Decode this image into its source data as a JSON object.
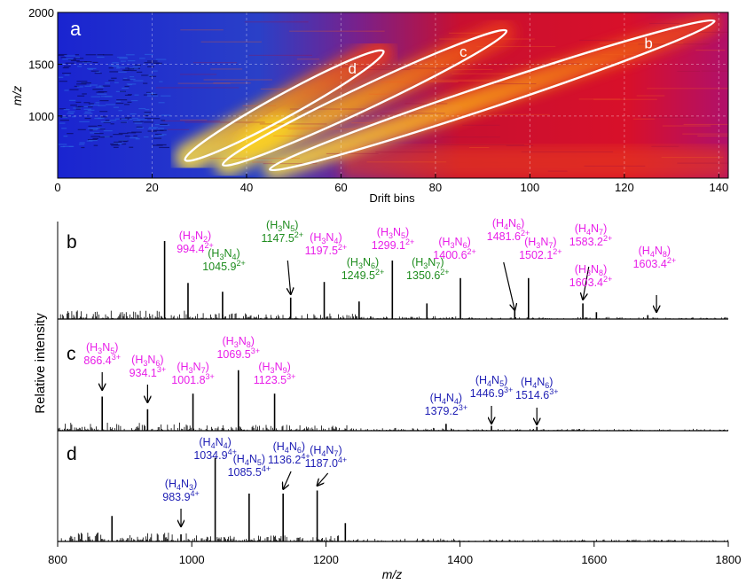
{
  "colors": {
    "heatmap_low": "#1a2ad8",
    "heatmap_mid": "#d8102a",
    "heatmap_high": "#ffd41a",
    "magenta": "#e81ee8",
    "green": "#1e8c1e",
    "blue": "#1e1eb4",
    "trace": "#000000"
  },
  "chart_data": [
    {
      "type": "heatmap",
      "panel_label": "a",
      "xlabel": "Drift bins",
      "ylabel": "m/z",
      "xlim": [
        0,
        142
      ],
      "ylim": [
        400,
        2000
      ],
      "x_ticks": [
        "0",
        "20",
        "40",
        "60",
        "80",
        "100",
        "120",
        "140"
      ],
      "y_ticks": [
        "1000",
        "1500",
        "2000"
      ],
      "grid": true,
      "trend_bands": [
        {
          "name": "d",
          "start": [
            28,
            600
          ],
          "end": [
            68,
            1600
          ]
        },
        {
          "name": "c",
          "start": [
            36,
            550
          ],
          "end": [
            94,
            1800
          ]
        },
        {
          "name": "b",
          "start": [
            46,
            500
          ],
          "end": [
            138,
            1900
          ]
        }
      ]
    },
    {
      "type": "line",
      "stacked_spectra": true,
      "xlabel": "m/z",
      "ylabel": "Relative intensity",
      "xlim": [
        800,
        1800
      ],
      "x_ticks": [
        "800",
        "1000",
        "1200",
        "1400",
        "1600",
        "1800"
      ],
      "panels": [
        {
          "label": "b",
          "peaks": [
            {
              "x": 959.5,
              "y": 0.8
            },
            {
              "x": 994.4,
              "y": 0.37
            },
            {
              "x": 1045.9,
              "y": 0.28
            },
            {
              "x": 1147.5,
              "y": 0.22
            },
            {
              "x": 1197.5,
              "y": 0.38
            },
            {
              "x": 1249.5,
              "y": 0.18
            },
            {
              "x": 1299.1,
              "y": 0.6
            },
            {
              "x": 1350.6,
              "y": 0.16
            },
            {
              "x": 1400.6,
              "y": 0.42
            },
            {
              "x": 1481.6,
              "y": 0.1
            },
            {
              "x": 1502.1,
              "y": 0.42
            },
            {
              "x": 1583.2,
              "y": 0.16
            },
            {
              "x": 1603.4,
              "y": 0.07
            },
            {
              "x": 1680.0,
              "y": 0.04
            }
          ],
          "annotations": [
            {
              "name": "(H3N2)",
              "value": "994.4",
              "charge": "2+",
              "color": "magenta"
            },
            {
              "name": "(H3N4)",
              "value": "1045.9",
              "charge": "2+",
              "color": "green"
            },
            {
              "name": "(H3N5)",
              "value": "1147.5",
              "charge": "2+",
              "color": "green"
            },
            {
              "name": "(H3N4)",
              "value": "1197.5",
              "charge": "2+",
              "color": "magenta"
            },
            {
              "name": "(H3N6)",
              "value": "1249.5",
              "charge": "2+",
              "color": "green"
            },
            {
              "name": "(H3N5)",
              "value": "1299.1",
              "charge": "2+",
              "color": "magenta"
            },
            {
              "name": "(H3N7)",
              "value": "1350.6",
              "charge": "2+",
              "color": "green"
            },
            {
              "name": "(H3N6)",
              "value": "1400.6",
              "charge": "2+",
              "color": "magenta"
            },
            {
              "name": "(H4N6)",
              "value": "1481.6",
              "charge": "2+",
              "color": "magenta"
            },
            {
              "name": "(H3N7)",
              "value": "1502.1",
              "charge": "2+",
              "color": "magenta"
            },
            {
              "name": "(H4N7)",
              "value": "1583.2",
              "charge": "2+",
              "color": "magenta"
            },
            {
              "name": "(H3N8)",
              "value": "1603.4",
              "charge": "2+",
              "color": "magenta"
            },
            {
              "name": "(H4N8)",
              "value": "1603.4",
              "charge": "2+",
              "color": "magenta"
            }
          ]
        },
        {
          "label": "c",
          "peaks": [
            {
              "x": 866.4,
              "y": 0.35
            },
            {
              "x": 934.1,
              "y": 0.22
            },
            {
              "x": 1001.8,
              "y": 0.38
            },
            {
              "x": 1069.5,
              "y": 0.62
            },
            {
              "x": 1123.5,
              "y": 0.38
            },
            {
              "x": 1379.2,
              "y": 0.07
            },
            {
              "x": 1446.9,
              "y": 0.05
            },
            {
              "x": 1514.6,
              "y": 0.04
            }
          ],
          "annotations": [
            {
              "name": "(H3N5)",
              "value": "866.4",
              "charge": "3+",
              "color": "magenta"
            },
            {
              "name": "(H3N6)",
              "value": "934.1",
              "charge": "3+",
              "color": "magenta"
            },
            {
              "name": "(H3N7)",
              "value": "1001.8",
              "charge": "3+",
              "color": "magenta"
            },
            {
              "name": "(H3N8)",
              "value": "1069.5",
              "charge": "3+",
              "color": "magenta"
            },
            {
              "name": "(H3N9)",
              "value": "1123.5",
              "charge": "3+",
              "color": "magenta"
            },
            {
              "name": "(H4N4)",
              "value": "1379.2",
              "charge": "3+",
              "color": "blue"
            },
            {
              "name": "(H4N5)",
              "value": "1446.9",
              "charge": "3+",
              "color": "blue"
            },
            {
              "name": "(H4N6)",
              "value": "1514.6",
              "charge": "3+",
              "color": "blue"
            }
          ]
        },
        {
          "label": "d",
          "peaks": [
            {
              "x": 881.0,
              "y": 0.25
            },
            {
              "x": 983.9,
              "y": 0.07
            },
            {
              "x": 1034.9,
              "y": 0.82
            },
            {
              "x": 1085.5,
              "y": 0.47
            },
            {
              "x": 1136.2,
              "y": 0.47
            },
            {
              "x": 1187.0,
              "y": 0.5
            },
            {
              "x": 1229.0,
              "y": 0.18
            }
          ],
          "annotations": [
            {
              "name": "(H4N3)",
              "value": "983.9",
              "charge": "4+",
              "color": "blue"
            },
            {
              "name": "(H4N4)",
              "value": "1034.9",
              "charge": "4+",
              "color": "blue"
            },
            {
              "name": "(H4N5)",
              "value": "1085.5",
              "charge": "4+",
              "color": "blue"
            },
            {
              "name": "(H4N6)",
              "value": "1136.2",
              "charge": "4+",
              "color": "blue"
            },
            {
              "name": "(H4N7)",
              "value": "1187.0",
              "charge": "4+",
              "color": "blue"
            }
          ]
        }
      ]
    }
  ]
}
